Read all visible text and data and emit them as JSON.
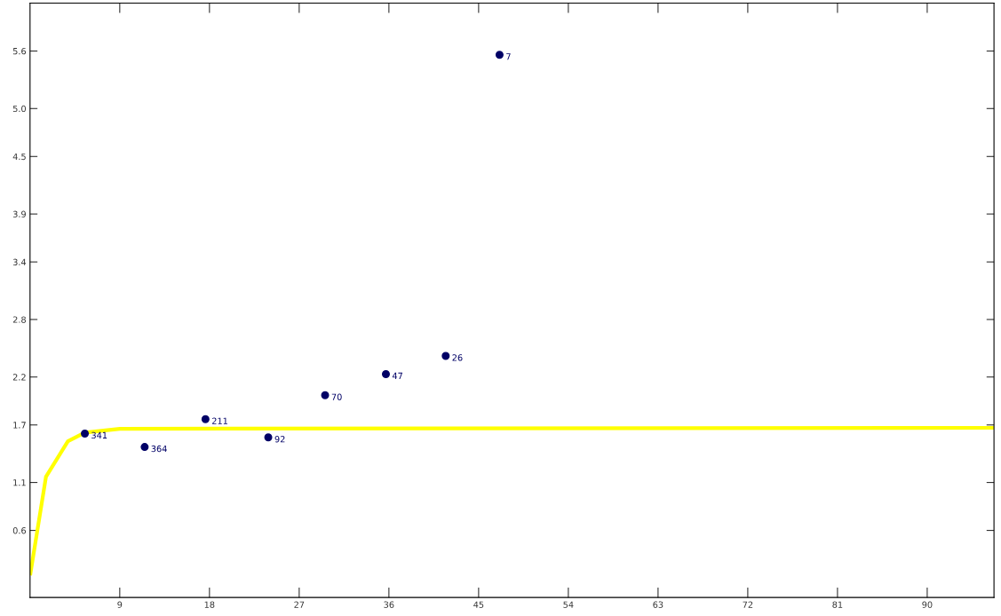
{
  "chart_data": {
    "type": "scatter",
    "xlim": [
      0,
      96.7
    ],
    "ylim": [
      -0.1,
      6.1
    ],
    "xticks": [
      9,
      18,
      27,
      36,
      45,
      54,
      63,
      72,
      81,
      90
    ],
    "yticks": [
      0.6,
      1.1,
      1.7,
      2.2,
      2.8,
      3.4,
      3.9,
      4.5,
      {
        "value": 5.0,
        "label": "5.0"
      },
      5.6
    ],
    "grid": false,
    "series": [
      {
        "type": "line",
        "color": "#ffff00",
        "x": [
          0.04,
          1.6,
          3.8,
          5.5,
          9,
          96.7
        ],
        "values": [
          0.15,
          1.16,
          1.53,
          1.62,
          1.66,
          1.67
        ]
      },
      {
        "color": "#000066",
        "marker": "circle",
        "x": [
          5.5,
          11.5,
          17.6,
          23.9,
          29.6,
          35.7,
          41.7,
          47.1
        ],
        "values": [
          1.61,
          1.47,
          1.76,
          1.57,
          2.01,
          2.23,
          2.42,
          5.56
        ]
      }
    ],
    "annotations": [
      {
        "text": "341",
        "x": 5.5,
        "y": 1.61
      },
      {
        "text": "364",
        "x": 11.5,
        "y": 1.47
      },
      {
        "text": "211",
        "x": 17.6,
        "y": 1.76
      },
      {
        "text": "92",
        "x": 23.9,
        "y": 1.57
      },
      {
        "text": "70",
        "x": 29.6,
        "y": 2.01
      },
      {
        "text": "47",
        "x": 35.7,
        "y": 2.23
      },
      {
        "text": "26",
        "x": 41.7,
        "y": 2.42
      },
      {
        "text": "7",
        "x": 47.1,
        "y": 5.56
      }
    ]
  }
}
